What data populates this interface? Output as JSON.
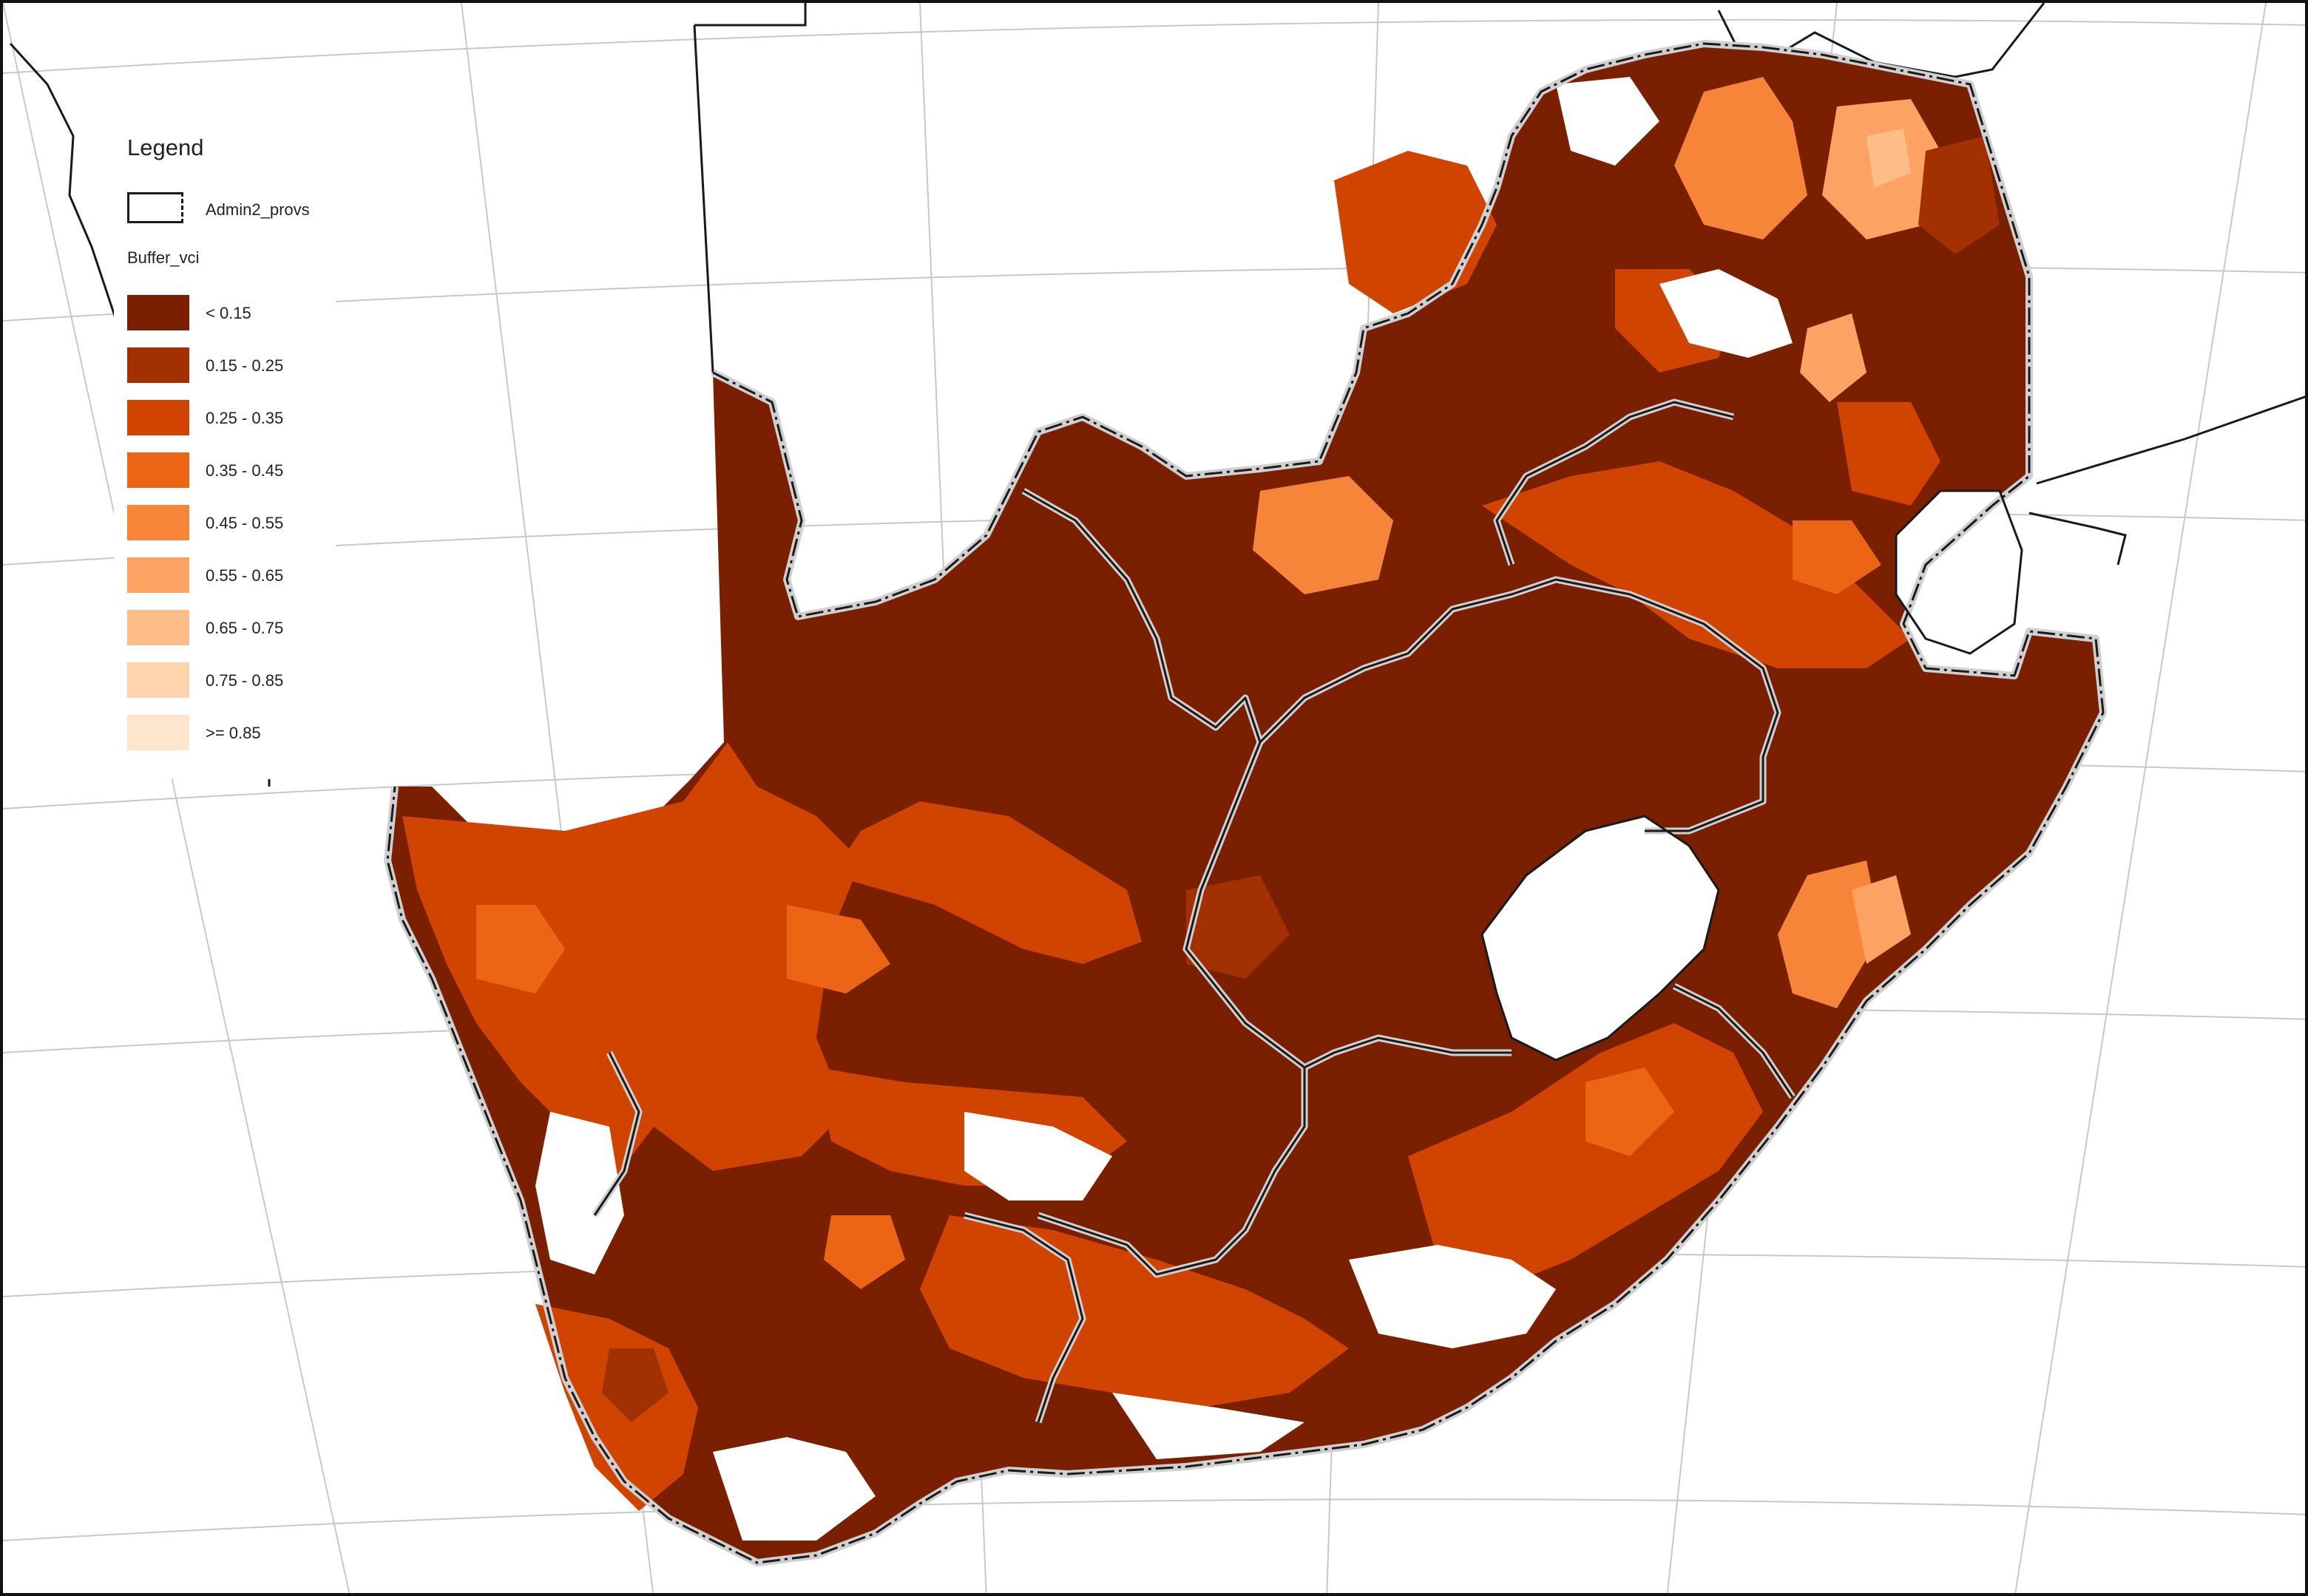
{
  "legend": {
    "title": "Legend",
    "admin_layer": "Admin2_provs",
    "group_title": "Buffer_vci",
    "classes": [
      {
        "label": "< 0.15",
        "color": "#7a2000"
      },
      {
        "label": "0.15 - 0.25",
        "color": "#a33000"
      },
      {
        "label": "0.25 - 0.35",
        "color": "#d14400"
      },
      {
        "label": "0.35 - 0.45",
        "color": "#ec6515"
      },
      {
        "label": "0.45 - 0.55",
        "color": "#f6853a"
      },
      {
        "label": "0.55 - 0.65",
        "color": "#fca263"
      },
      {
        "label": "0.65 - 0.75",
        "color": "#fdbd88"
      },
      {
        "label": "0.75 - 0.85",
        "color": "#fed4ad"
      },
      {
        "label": ">= 0.85",
        "color": "#fee6ce"
      }
    ]
  },
  "colors": {
    "background": "#ffffff",
    "graticule": "#c8c8c8",
    "admin_boundary": "#1a1a1a",
    "admin_halo": "#d0d0d0"
  }
}
